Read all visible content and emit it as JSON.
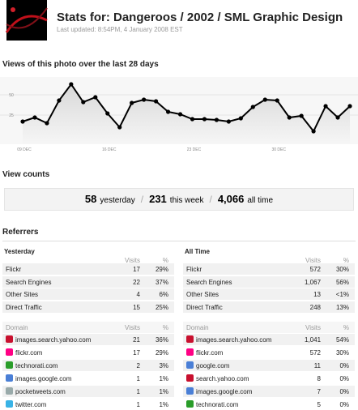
{
  "header": {
    "title": "Stats for: Dangeroos / 2002 / SML Graphic Design",
    "subtitle": "Last updated: 8:54PM, 4 January 2008 EST"
  },
  "chart_data": {
    "type": "line",
    "title": "Views of this photo over the last 28 days",
    "categories": [
      "09 DEC",
      null,
      null,
      null,
      null,
      null,
      null,
      "16 DEC",
      null,
      null,
      null,
      null,
      null,
      null,
      "23 DEC",
      null,
      null,
      null,
      null,
      null,
      null,
      "30 DEC",
      null,
      null,
      null,
      null,
      null,
      null
    ],
    "values": [
      17,
      22,
      15,
      43,
      63,
      41,
      47,
      27,
      10,
      40,
      44,
      42,
      29,
      26,
      20,
      20,
      19,
      17,
      21,
      35,
      44,
      43,
      22,
      24,
      5,
      36,
      22,
      36
    ],
    "ylim": [
      0,
      70
    ],
    "yticks": [
      25,
      50
    ],
    "color": "#000000",
    "grid": true
  },
  "view_counts": {
    "title": "View counts",
    "separator": "/",
    "items": [
      {
        "value": "58",
        "label": "yesterday"
      },
      {
        "value": "231",
        "label": "this week"
      },
      {
        "value": "4,066",
        "label": "all time"
      }
    ]
  },
  "referrers": {
    "title": "Referrers",
    "tables": [
      {
        "title": "Yesterday",
        "header": [
          "Visits",
          "%"
        ],
        "rows": [
          [
            "Flickr",
            "17",
            "29%"
          ],
          [
            "Search Engines",
            "22",
            "37%"
          ],
          [
            "Other Sites",
            "4",
            "6%"
          ],
          [
            "Direct Traffic",
            "15",
            "25%"
          ]
        ],
        "domain_header": [
          "Domain",
          "Visits",
          "%"
        ],
        "domain_rows": [
          [
            "images.search.yahoo.com",
            "21",
            "36%"
          ],
          [
            "flickr.com",
            "17",
            "29%"
          ],
          [
            "technorati.com",
            "2",
            "3%"
          ],
          [
            "images.google.com",
            "1",
            "1%"
          ],
          [
            "pocketweets.com",
            "1",
            "1%"
          ],
          [
            "twitter.com",
            "1",
            "1%"
          ]
        ]
      },
      {
        "title": "All Time",
        "header": [
          "Visits",
          "%"
        ],
        "rows": [
          [
            "Flickr",
            "572",
            "30%"
          ],
          [
            "Search Engines",
            "1,067",
            "56%"
          ],
          [
            "Other Sites",
            "13",
            "<1%"
          ],
          [
            "Direct Traffic",
            "248",
            "13%"
          ]
        ],
        "domain_header": [
          "Domain",
          "Visits",
          "%"
        ],
        "domain_rows": [
          [
            "images.search.yahoo.com",
            "1,041",
            "54%"
          ],
          [
            "flickr.com",
            "572",
            "30%"
          ],
          [
            "google.com",
            "11",
            "0%"
          ],
          [
            "search.yahoo.com",
            "8",
            "0%"
          ],
          [
            "images.google.com",
            "7",
            "0%"
          ],
          [
            "technorati.com",
            "5",
            "0%"
          ]
        ]
      }
    ]
  }
}
